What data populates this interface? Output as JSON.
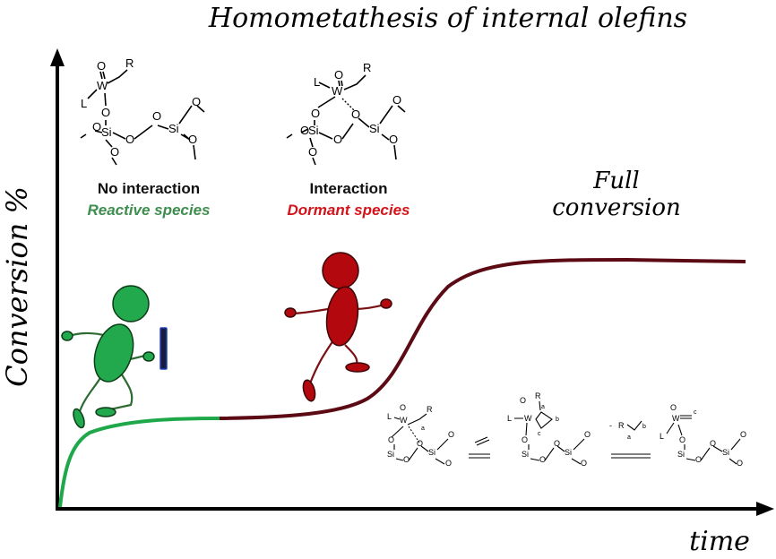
{
  "title": "Homometathesis of internal olefins",
  "axes": {
    "y_label": "Conversion %",
    "x_label": "time"
  },
  "annotations": {
    "full_conversion_line1": "Full",
    "full_conversion_line2": "conversion",
    "left_caption": "No interaction",
    "left_species": "Reactive species",
    "mid_caption": "Interaction",
    "mid_species": "Dormant species"
  },
  "chem_labels": {
    "oxo": "O",
    "R": "R",
    "W": "W",
    "L": "L",
    "O": "O",
    "Si": "Si",
    "a": "a",
    "b": "b",
    "c": "c",
    "minus": "-"
  },
  "colors": {
    "reactive": "#1fa84a",
    "dormant": "#b0080f",
    "curve_dark": "#5c0a14",
    "runner_green": "#22a94d",
    "runner_red": "#b3080d"
  }
}
